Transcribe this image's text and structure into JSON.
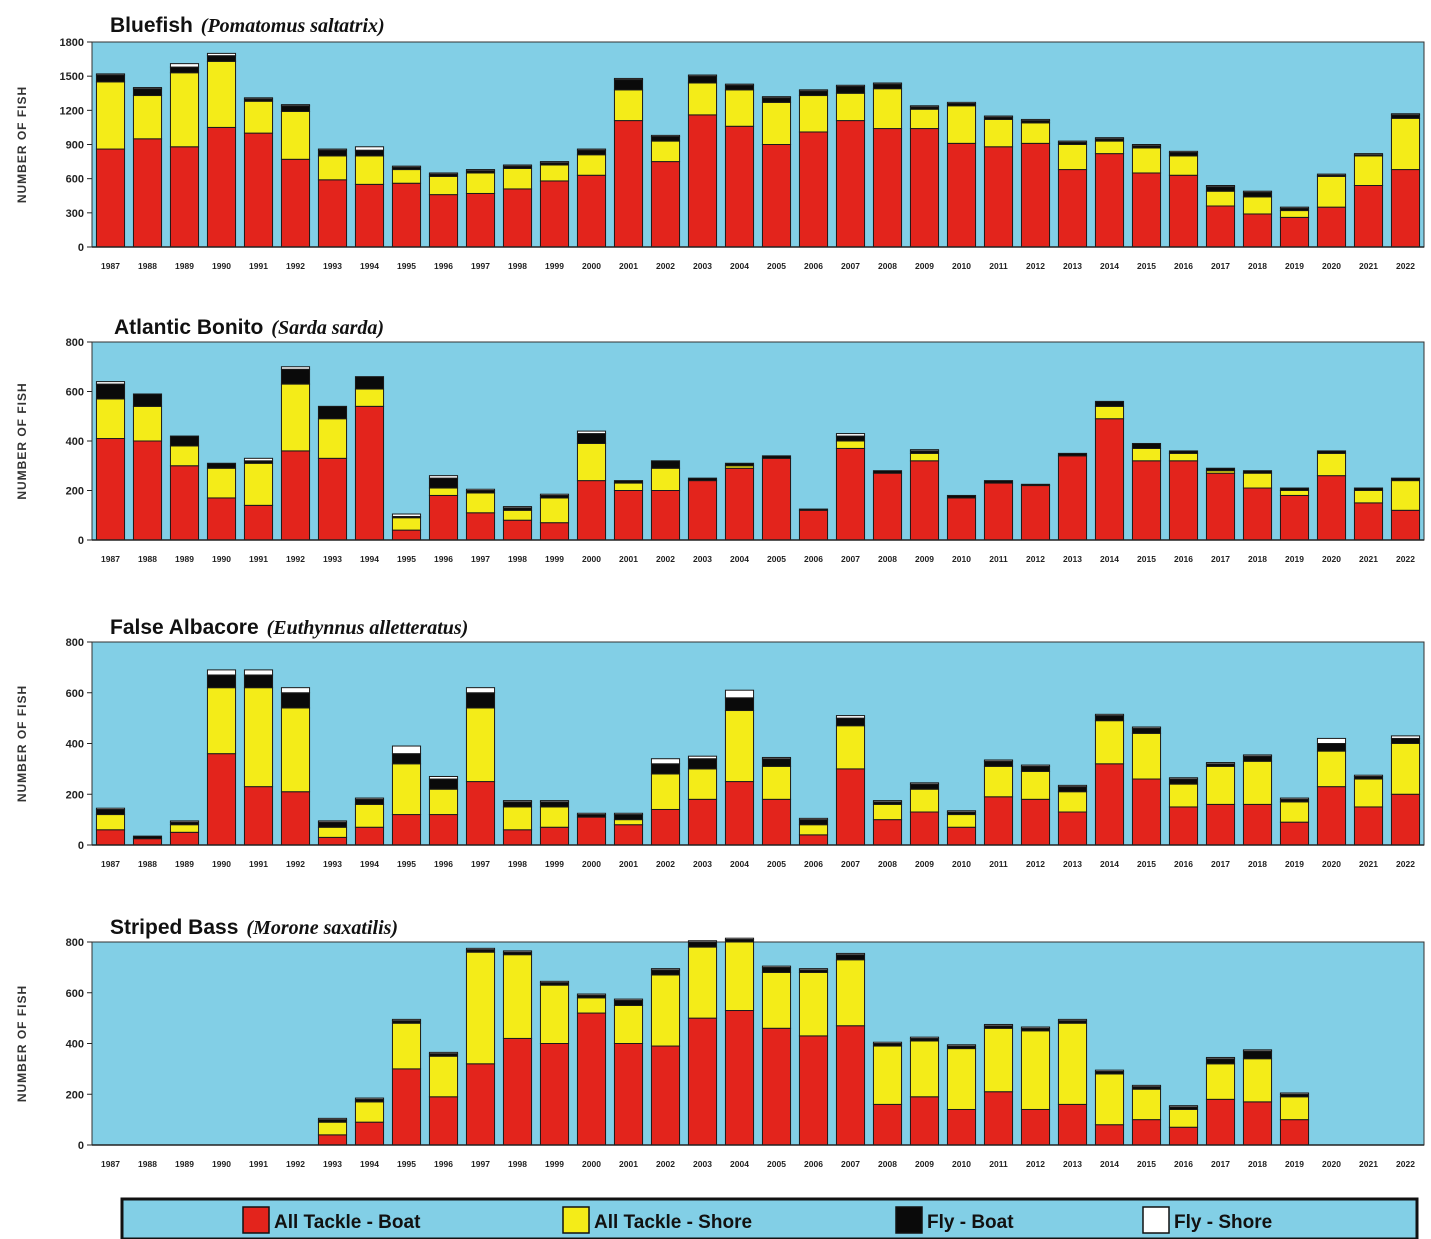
{
  "colors": {
    "plot_bg": "#82cfe6",
    "boat": "#e3241c",
    "shore": "#f4ec18",
    "fly_boat": "#0a0a0a",
    "fly_shore": "#ffffff"
  },
  "legend": {
    "items": [
      {
        "label": "All Tackle - Boat",
        "color": "#e3241c"
      },
      {
        "label": "All Tackle - Shore",
        "color": "#f4ec18"
      },
      {
        "label": "Fly - Boat",
        "color": "#0a0a0a"
      },
      {
        "label": "Fly - Shore",
        "color": "#ffffff"
      }
    ]
  },
  "chart_data": [
    {
      "type": "bar",
      "stacked": true,
      "title": "Bluefish",
      "subtitle": "(Pomatomus saltatrix)",
      "ylabel": "NUMBER OF FISH",
      "ylim": [
        0,
        1800
      ],
      "yticks": [
        0,
        300,
        600,
        900,
        1200,
        1500,
        1800
      ],
      "categories": [
        "1987",
        "1988",
        "1989",
        "1990",
        "1991",
        "1992",
        "1993",
        "1994",
        "1995",
        "1996",
        "1997",
        "1998",
        "1999",
        "2000",
        "2001",
        "2002",
        "2003",
        "2004",
        "2005",
        "2006",
        "2007",
        "2008",
        "2009",
        "2010",
        "2011",
        "2012",
        "2013",
        "2014",
        "2015",
        "2016",
        "2017",
        "2018",
        "2019",
        "2020",
        "2021",
        "2022"
      ],
      "series": [
        {
          "name": "All Tackle - Boat",
          "values": [
            860,
            950,
            880,
            1050,
            1000,
            770,
            590,
            550,
            560,
            460,
            470,
            510,
            580,
            630,
            1110,
            750,
            1160,
            1060,
            900,
            1010,
            1110,
            1040,
            1040,
            910,
            880,
            910,
            680,
            820,
            650,
            630,
            360,
            290,
            260,
            350,
            540,
            680
          ]
        },
        {
          "name": "All Tackle - Shore",
          "values": [
            590,
            380,
            650,
            580,
            280,
            420,
            210,
            250,
            120,
            160,
            180,
            180,
            140,
            180,
            270,
            180,
            280,
            320,
            370,
            320,
            240,
            350,
            170,
            330,
            240,
            180,
            220,
            110,
            220,
            170,
            130,
            150,
            60,
            270,
            260,
            450
          ]
        },
        {
          "name": "Fly - Boat",
          "values": [
            60,
            60,
            50,
            50,
            20,
            50,
            50,
            50,
            20,
            20,
            20,
            20,
            20,
            40,
            90,
            40,
            60,
            40,
            40,
            40,
            60,
            40,
            20,
            20,
            20,
            20,
            20,
            20,
            20,
            30,
            40,
            40,
            20,
            10,
            10,
            30
          ]
        },
        {
          "name": "Fly - Shore",
          "values": [
            10,
            10,
            30,
            20,
            10,
            10,
            10,
            30,
            10,
            10,
            10,
            10,
            10,
            10,
            10,
            10,
            10,
            10,
            10,
            10,
            10,
            10,
            10,
            10,
            10,
            10,
            10,
            10,
            10,
            10,
            10,
            10,
            10,
            10,
            10,
            10
          ]
        }
      ]
    },
    {
      "type": "bar",
      "stacked": true,
      "title": "Atlantic Bonito",
      "subtitle": "(Sarda sarda)",
      "ylabel": "NUMBER OF FISH",
      "ylim": [
        0,
        800
      ],
      "yticks": [
        0,
        200,
        400,
        600,
        800
      ],
      "categories": [
        "1987",
        "1988",
        "1989",
        "1990",
        "1991",
        "1992",
        "1993",
        "1994",
        "1995",
        "1996",
        "1997",
        "1998",
        "1999",
        "2000",
        "2001",
        "2002",
        "2003",
        "2004",
        "2005",
        "2006",
        "2007",
        "2008",
        "2009",
        "2010",
        "2011",
        "2012",
        "2013",
        "2014",
        "2015",
        "2016",
        "2017",
        "2018",
        "2019",
        "2020",
        "2021",
        "2022"
      ],
      "series": [
        {
          "name": "All Tackle - Boat",
          "values": [
            410,
            400,
            300,
            170,
            140,
            360,
            330,
            540,
            40,
            180,
            110,
            80,
            70,
            240,
            200,
            200,
            240,
            290,
            330,
            120,
            370,
            270,
            320,
            170,
            230,
            220,
            340,
            490,
            320,
            320,
            270,
            210,
            180,
            260,
            150,
            120
          ]
        },
        {
          "name": "All Tackle - Shore",
          "values": [
            160,
            140,
            80,
            120,
            170,
            270,
            160,
            70,
            50,
            30,
            80,
            40,
            100,
            150,
            30,
            90,
            0,
            10,
            0,
            0,
            30,
            0,
            30,
            0,
            0,
            0,
            0,
            50,
            50,
            30,
            10,
            60,
            20,
            90,
            50,
            120
          ]
        },
        {
          "name": "Fly - Boat",
          "values": [
            60,
            50,
            40,
            20,
            10,
            60,
            50,
            50,
            5,
            40,
            10,
            10,
            10,
            40,
            10,
            30,
            10,
            10,
            10,
            5,
            20,
            10,
            10,
            10,
            10,
            5,
            10,
            20,
            20,
            10,
            10,
            10,
            10,
            10,
            10,
            10
          ]
        },
        {
          "name": "Fly - Shore",
          "values": [
            10,
            0,
            0,
            0,
            10,
            10,
            0,
            0,
            10,
            10,
            5,
            5,
            5,
            10,
            0,
            0,
            0,
            0,
            0,
            0,
            10,
            0,
            5,
            0,
            0,
            0,
            0,
            0,
            0,
            0,
            0,
            0,
            0,
            0,
            0,
            0
          ]
        }
      ]
    },
    {
      "type": "bar",
      "stacked": true,
      "title": "False Albacore",
      "subtitle": "(Euthynnus alletteratus)",
      "ylabel": "NUMBER OF FISH",
      "ylim": [
        0,
        800
      ],
      "yticks": [
        0,
        200,
        400,
        600,
        800
      ],
      "categories": [
        "1987",
        "1988",
        "1989",
        "1990",
        "1991",
        "1992",
        "1993",
        "1994",
        "1995",
        "1996",
        "1997",
        "1998",
        "1999",
        "2000",
        "2001",
        "2002",
        "2003",
        "2004",
        "2005",
        "2006",
        "2007",
        "2008",
        "2009",
        "2010",
        "2011",
        "2012",
        "2013",
        "2014",
        "2015",
        "2016",
        "2017",
        "2018",
        "2019",
        "2020",
        "2021",
        "2022"
      ],
      "series": [
        {
          "name": "All Tackle - Boat",
          "values": [
            60,
            25,
            50,
            360,
            230,
            210,
            30,
            70,
            120,
            120,
            250,
            60,
            70,
            110,
            80,
            140,
            180,
            250,
            180,
            40,
            300,
            100,
            130,
            70,
            190,
            180,
            130,
            320,
            260,
            150,
            160,
            160,
            90,
            230,
            150,
            200
          ]
        },
        {
          "name": "All Tackle - Shore",
          "values": [
            60,
            0,
            30,
            260,
            390,
            330,
            40,
            90,
            200,
            100,
            290,
            90,
            80,
            0,
            20,
            140,
            120,
            280,
            130,
            40,
            170,
            60,
            90,
            50,
            120,
            110,
            80,
            170,
            180,
            90,
            150,
            170,
            80,
            140,
            110,
            200
          ]
        },
        {
          "name": "Fly - Boat",
          "values": [
            20,
            10,
            10,
            50,
            50,
            60,
            20,
            20,
            40,
            40,
            60,
            20,
            20,
            10,
            20,
            40,
            40,
            50,
            30,
            20,
            30,
            10,
            20,
            10,
            20,
            20,
            20,
            20,
            20,
            20,
            10,
            20,
            10,
            30,
            10,
            20
          ]
        },
        {
          "name": "Fly - Shore",
          "values": [
            5,
            0,
            5,
            20,
            20,
            20,
            5,
            5,
            30,
            10,
            20,
            5,
            5,
            5,
            5,
            20,
            10,
            30,
            5,
            5,
            10,
            5,
            5,
            5,
            5,
            5,
            5,
            5,
            5,
            5,
            5,
            5,
            5,
            20,
            5,
            10
          ]
        }
      ]
    },
    {
      "type": "bar",
      "stacked": true,
      "title": "Striped Bass",
      "subtitle": "(Morone saxatilis)",
      "ylabel": "NUMBER OF FISH",
      "ylim": [
        0,
        800
      ],
      "yticks": [
        0,
        200,
        400,
        600,
        800
      ],
      "categories": [
        "1987",
        "1988",
        "1989",
        "1990",
        "1991",
        "1992",
        "1993",
        "1994",
        "1995",
        "1996",
        "1997",
        "1998",
        "1999",
        "2000",
        "2001",
        "2002",
        "2003",
        "2004",
        "2005",
        "2006",
        "2007",
        "2008",
        "2009",
        "2010",
        "2011",
        "2012",
        "2013",
        "2014",
        "2015",
        "2016",
        "2017",
        "2018",
        "2019",
        "2020",
        "2021",
        "2022"
      ],
      "series": [
        {
          "name": "All Tackle - Boat",
          "values": [
            0,
            0,
            0,
            0,
            0,
            0,
            40,
            90,
            300,
            190,
            320,
            420,
            400,
            520,
            400,
            390,
            500,
            530,
            460,
            430,
            470,
            160,
            190,
            140,
            210,
            140,
            160,
            80,
            100,
            70,
            180,
            170,
            100,
            0,
            0,
            0
          ]
        },
        {
          "name": "All Tackle - Shore",
          "values": [
            0,
            0,
            0,
            0,
            0,
            0,
            50,
            80,
            180,
            160,
            440,
            330,
            230,
            60,
            150,
            280,
            280,
            270,
            220,
            250,
            260,
            230,
            220,
            240,
            250,
            310,
            320,
            200,
            120,
            70,
            140,
            170,
            90,
            0,
            0,
            0
          ]
        },
        {
          "name": "Fly - Boat",
          "values": [
            0,
            0,
            0,
            0,
            0,
            0,
            10,
            10,
            10,
            10,
            10,
            10,
            10,
            10,
            20,
            20,
            20,
            10,
            20,
            10,
            20,
            10,
            10,
            10,
            10,
            10,
            10,
            10,
            10,
            10,
            20,
            30,
            10,
            0,
            0,
            0
          ]
        },
        {
          "name": "Fly - Shore",
          "values": [
            0,
            0,
            0,
            0,
            0,
            0,
            5,
            5,
            5,
            5,
            5,
            5,
            5,
            5,
            5,
            5,
            5,
            5,
            5,
            5,
            5,
            5,
            5,
            5,
            5,
            5,
            5,
            5,
            5,
            5,
            5,
            5,
            5,
            0,
            0,
            0
          ]
        }
      ]
    }
  ]
}
